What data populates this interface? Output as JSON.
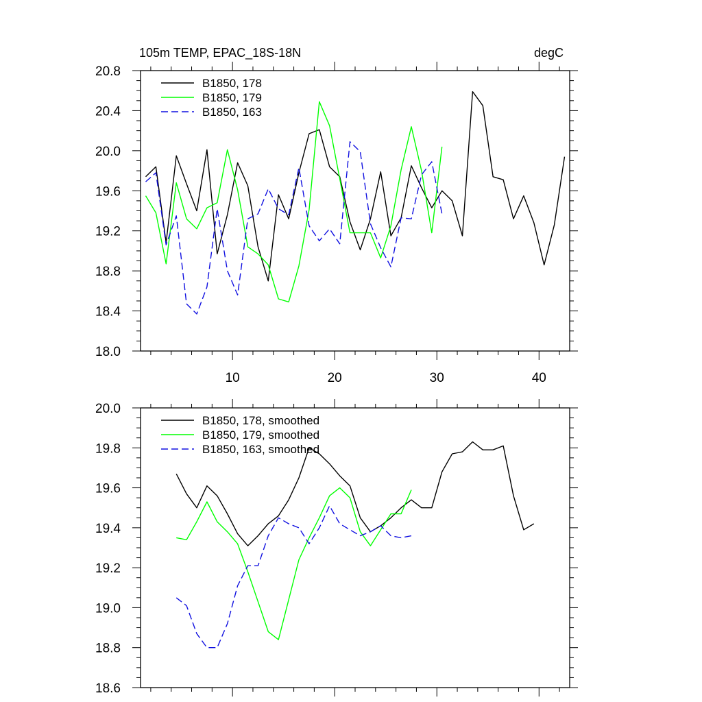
{
  "chart_data": [
    {
      "type": "line",
      "title": "105m TEMP, EPAC_18S-18N",
      "units": "degC",
      "xlim": [
        1,
        43
      ],
      "ylim": [
        18.0,
        20.8
      ],
      "xticks": [
        10,
        20,
        30,
        40
      ],
      "xtick_labels": [
        "10",
        "20",
        "30",
        "40"
      ],
      "yticks": [
        18.0,
        18.4,
        18.8,
        19.2,
        19.6,
        20.0,
        20.4,
        20.8
      ],
      "ytick_labels": [
        "18.0",
        "18.4",
        "18.8",
        "19.2",
        "19.6",
        "20.0",
        "20.4",
        "20.8"
      ],
      "legend_position": "top-left",
      "series": [
        {
          "name": "B1850, 178",
          "color": "#000000",
          "dash": "solid",
          "x": [
            1.5,
            2.5,
            3.5,
            4.5,
            5.5,
            6.5,
            7.5,
            8.5,
            9.5,
            10.5,
            11.5,
            12.5,
            13.5,
            14.5,
            15.5,
            16.5,
            17.5,
            18.5,
            19.5,
            20.5,
            21.5,
            22.5,
            23.5,
            24.5,
            25.5,
            26.5,
            27.5,
            28.5,
            29.5,
            30.5,
            31.5,
            32.5,
            33.5,
            34.5,
            35.5,
            36.5,
            37.5,
            38.5,
            39.5,
            40.5,
            41.5,
            42.5
          ],
          "y": [
            19.74,
            19.84,
            19.08,
            19.95,
            19.67,
            19.4,
            20.01,
            18.97,
            19.36,
            19.88,
            19.65,
            19.04,
            18.7,
            19.56,
            19.32,
            19.78,
            20.17,
            20.21,
            19.84,
            19.74,
            19.29,
            19.01,
            19.32,
            19.79,
            19.15,
            19.33,
            19.85,
            19.63,
            19.43,
            19.6,
            19.5,
            19.15,
            20.59,
            20.45,
            19.74,
            19.71,
            19.32,
            19.55,
            19.28,
            18.86,
            19.26,
            19.94
          ]
        },
        {
          "name": "B1850, 179",
          "color": "#00ff00",
          "dash": "solid",
          "x": [
            1.5,
            2.5,
            3.5,
            4.5,
            5.5,
            6.5,
            7.5,
            8.5,
            9.5,
            10.5,
            11.5,
            12.5,
            13.5,
            14.5,
            15.5,
            16.5,
            17.5,
            18.5,
            19.5,
            20.5,
            21.5,
            22.5,
            23.5,
            24.5,
            25.5,
            26.5,
            27.5,
            28.5,
            29.5,
            30.5
          ],
          "y": [
            19.55,
            19.38,
            18.87,
            19.68,
            19.32,
            19.22,
            19.43,
            19.48,
            20.01,
            19.61,
            19.04,
            18.97,
            18.86,
            18.52,
            18.49,
            18.85,
            19.41,
            20.49,
            20.25,
            19.72,
            19.18,
            19.18,
            19.18,
            18.93,
            19.25,
            19.81,
            20.24,
            19.8,
            19.18,
            20.04
          ]
        },
        {
          "name": "B1850, 163",
          "color": "#1010e0",
          "dash": "dashed",
          "x": [
            1.5,
            2.5,
            3.5,
            4.5,
            5.5,
            6.5,
            7.5,
            8.5,
            9.5,
            10.5,
            11.5,
            12.5,
            13.5,
            14.5,
            15.5,
            16.5,
            17.5,
            18.5,
            19.5,
            20.5,
            21.5,
            22.5,
            23.5,
            24.5,
            25.5,
            26.5,
            27.5,
            28.5,
            29.5,
            30.5
          ],
          "y": [
            19.69,
            19.78,
            19.06,
            19.35,
            18.47,
            18.37,
            18.64,
            19.42,
            18.8,
            18.56,
            19.32,
            19.37,
            19.62,
            19.42,
            19.36,
            19.83,
            19.25,
            19.1,
            19.22,
            19.07,
            20.09,
            19.99,
            19.27,
            19.03,
            18.84,
            19.33,
            19.32,
            19.76,
            19.89,
            19.37
          ]
        }
      ]
    },
    {
      "type": "line",
      "xlim": [
        1,
        43
      ],
      "ylim": [
        18.6,
        20.0
      ],
      "xticks": [
        10,
        20,
        30,
        40
      ],
      "xtick_labels": [
        "",
        "",
        "",
        ""
      ],
      "yticks": [
        18.6,
        18.8,
        19.0,
        19.2,
        19.4,
        19.6,
        19.8,
        20.0
      ],
      "ytick_labels": [
        "18.6",
        "18.8",
        "19.0",
        "19.2",
        "19.4",
        "19.6",
        "19.8",
        "20.0"
      ],
      "legend_position": "top-left",
      "series": [
        {
          "name": "B1850, 178, smoothed",
          "color": "#000000",
          "dash": "solid",
          "x": [
            4.5,
            5.5,
            6.5,
            7.5,
            8.5,
            9.5,
            10.5,
            11.5,
            12.5,
            13.5,
            14.5,
            15.5,
            16.5,
            17.5,
            18.5,
            19.5,
            20.5,
            21.5,
            22.5,
            23.5,
            24.5,
            25.5,
            26.5,
            27.5,
            28.5,
            29.5,
            30.5,
            31.5,
            32.5,
            33.5,
            34.5,
            35.5,
            36.5,
            37.5,
            38.5,
            39.5
          ],
          "y": [
            19.67,
            19.57,
            19.5,
            19.61,
            19.56,
            19.47,
            19.37,
            19.31,
            19.36,
            19.42,
            19.46,
            19.54,
            19.65,
            19.8,
            19.77,
            19.72,
            19.66,
            19.61,
            19.45,
            19.38,
            19.41,
            19.45,
            19.5,
            19.54,
            19.5,
            19.5,
            19.68,
            19.77,
            19.78,
            19.83,
            19.79,
            19.79,
            19.81,
            19.56,
            19.39,
            19.42
          ]
        },
        {
          "name": "B1850, 179, smoothed",
          "color": "#00ff00",
          "dash": "solid",
          "x": [
            4.5,
            5.5,
            6.5,
            7.5,
            8.5,
            9.5,
            10.5,
            11.5,
            12.5,
            13.5,
            14.5,
            15.5,
            16.5,
            17.5,
            18.5,
            19.5,
            20.5,
            21.5,
            22.5,
            23.5,
            24.5,
            25.5,
            26.5,
            27.5
          ],
          "y": [
            19.35,
            19.34,
            19.43,
            19.53,
            19.43,
            19.38,
            19.32,
            19.18,
            19.03,
            18.88,
            18.84,
            19.04,
            19.24,
            19.35,
            19.45,
            19.56,
            19.6,
            19.55,
            19.38,
            19.31,
            19.39,
            19.47,
            19.47,
            19.59
          ]
        },
        {
          "name": "B1850, 163, smoothed",
          "color": "#1010e0",
          "dash": "dashed",
          "x": [
            4.5,
            5.5,
            6.5,
            7.5,
            8.5,
            9.5,
            10.5,
            11.5,
            12.5,
            13.5,
            14.5,
            15.5,
            16.5,
            17.5,
            18.5,
            19.5,
            20.5,
            21.5,
            22.5,
            23.5,
            24.5,
            25.5,
            26.5,
            27.5
          ],
          "y": [
            19.05,
            19.01,
            18.87,
            18.8,
            18.8,
            18.92,
            19.11,
            19.21,
            19.21,
            19.36,
            19.45,
            19.42,
            19.4,
            19.32,
            19.4,
            19.51,
            19.42,
            19.39,
            19.36,
            19.38,
            19.41,
            19.36,
            19.35,
            19.36
          ]
        }
      ]
    }
  ]
}
